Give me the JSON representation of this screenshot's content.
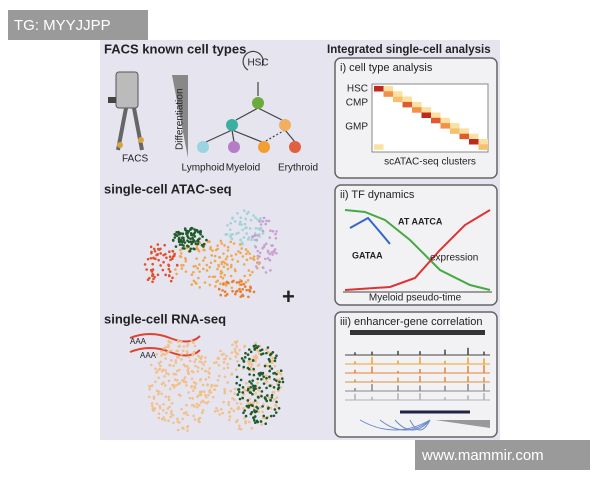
{
  "watermark": "TG: MYYJJPP",
  "footer": "www.mammir.com",
  "left": {
    "facs": {
      "title": "FACS known cell types",
      "hsc": "HSC",
      "axis": "Differentiation",
      "facs_label": "FACS",
      "lineages": [
        "Lymphoid",
        "Myeloid",
        "Erythroid"
      ]
    },
    "atac": {
      "title": "single-cell ATAC-seq"
    },
    "plus": "+",
    "rna": {
      "title": "single-cell RNA-seq",
      "tails": [
        "AAA",
        "AAA"
      ]
    }
  },
  "right": {
    "title": "Integrated single-cell analysis",
    "panels": [
      {
        "title": "i) cell type analysis",
        "row_labels": [
          "HSC",
          "CMP",
          "GMP"
        ],
        "x_label": "scATAC-seq clusters"
      },
      {
        "title": "ii) TF dynamics",
        "motifs": [
          "AT AATCA",
          "GATAA"
        ],
        "curve_label": "expression",
        "x_label": "Myeloid pseudo-time"
      },
      {
        "title": "iii) enhancer-gene correlation"
      }
    ]
  }
}
